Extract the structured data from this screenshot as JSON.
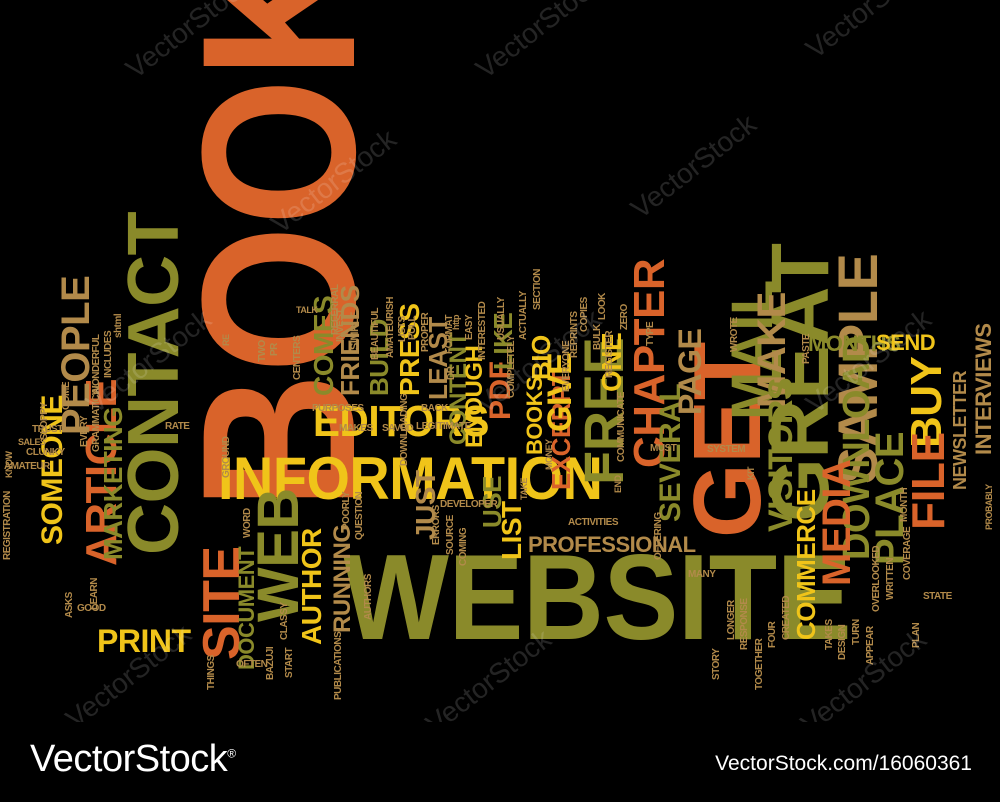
{
  "colors": {
    "background": "#000000",
    "orange": "#d9632a",
    "olive": "#8a8a2a",
    "yellow": "#f0c419",
    "gold": "#c99a2e",
    "tan": "#b28a4a",
    "watermark": "#ffffff"
  },
  "words": {
    "book": "Book",
    "website": "Website",
    "contact": "Contact",
    "information": "Information",
    "get": "Get",
    "great": "Great",
    "mail": "Mail",
    "sample": "Sample",
    "site": "Site",
    "web": "Web",
    "article": "Article",
    "marketing": "Marketing",
    "people": "People",
    "editors": "Editors",
    "free": "Free",
    "buy": "Buy",
    "download": "Download",
    "place": "Place",
    "file": "File",
    "media": "Media",
    "visitors": "Visitors",
    "make": "Make",
    "chapter": "Chapter",
    "page": "Page",
    "print": "Print",
    "someone": "Someone",
    "document": "Document",
    "author": "Author",
    "comes": "Comes",
    "friends": "Friends",
    "build": "Build",
    "press": "Press",
    "content": "Content",
    "least": "Least",
    "enough": "Enough",
    "pdf": "PDF",
    "like": "Like",
    "give": "Give",
    "excerpt": "Excerpt",
    "one": "One",
    "several": "Several",
    "professional": "Professional",
    "commerce": "Commerce",
    "months": "Months",
    "send": "Send",
    "newsletter": "Newsletter",
    "interviews": "Interviews",
    "list": "List",
    "use": "Use",
    "bio": "Bio",
    "books": "Books",
    "just": "Just",
    "running": "Running",
    "talk": "Talk",
    "centers": "Centers",
    "invest": "Invest",
    "simple": "Simple",
    "referral": "Referral",
    "beautiful": "Beautiful",
    "amateurish": "Amateurish",
    "lists": "Lists",
    "pull": "Pull",
    "proper": "Proper",
    "format": "Format",
    "dr": "Dr",
    "makes": "Makes",
    "saved": "Saved",
    "legitimate": "Legitimate",
    "back": "Back",
    "purposes": "Purposes",
    "rate": "Rate",
    "two": "Two",
    "pr": "PR",
    "re": "Re",
    "ground": "Ground",
    "word": "Word",
    "question": "Question",
    "poorly": "Poorly",
    "authors": "Authors",
    "bazuji": "Bazuji",
    "classy": "Classy",
    "publications": "Publications",
    "start": "Start",
    "often": "Often",
    "things": "Things",
    "learn": "Learn",
    "asks": "Asks",
    "good": "Good",
    "registration": "Registration",
    "know": "Know",
    "amateur": "Amateur",
    "clunky": "Clunky",
    "sales": "Sales",
    "trust": "Trust",
    "sloppy": "Sloppy",
    "come": "Come",
    "every": "Every",
    "grammatical": "Grammatical",
    "includes": "Includes",
    "wonderful": "Wonderful",
    "shtml": "shtml",
    "downloading": "Downloading",
    "easy": "Easy",
    "interested": "Interested",
    "http": "http",
    "usually": "Usually",
    "completely": "Completely",
    "actually": "Actually",
    "section": "Section",
    "everyone": "Everyone",
    "reprints": "Reprints",
    "copies": "Copies",
    "bulk": "Bulk",
    "register": "Register",
    "zero": "Zero",
    "look": "Look",
    "type": "Type",
    "wrote": "Wrote",
    "paste": "Paste",
    "communicate": "Communicate",
    "must": "Must",
    "kit": "Kit",
    "system": "System",
    "money": "Money",
    "developer": "Developer",
    "errors": "Errors",
    "source": "Source",
    "coming": "Coming",
    "take": "Take",
    "activities": "Activities",
    "offering": "Offering",
    "end": "End",
    "many": "Many",
    "longer": "Longer",
    "response": "Response",
    "together": "Together",
    "four": "Four",
    "created": "Created",
    "story": "Story",
    "takes": "Takes",
    "design": "Design",
    "turn": "Turn",
    "appear": "Appear",
    "overlooked": "Overlooked",
    "written": "Written",
    "coverage": "Coverage",
    "month": "Month",
    "plan": "Plan",
    "state": "State",
    "probably": "Probably"
  },
  "watermark": {
    "brand": "VectorStock",
    "registered": "®",
    "image_url": "VectorStock.com/16060361",
    "ghost_text": "VectorStock"
  }
}
